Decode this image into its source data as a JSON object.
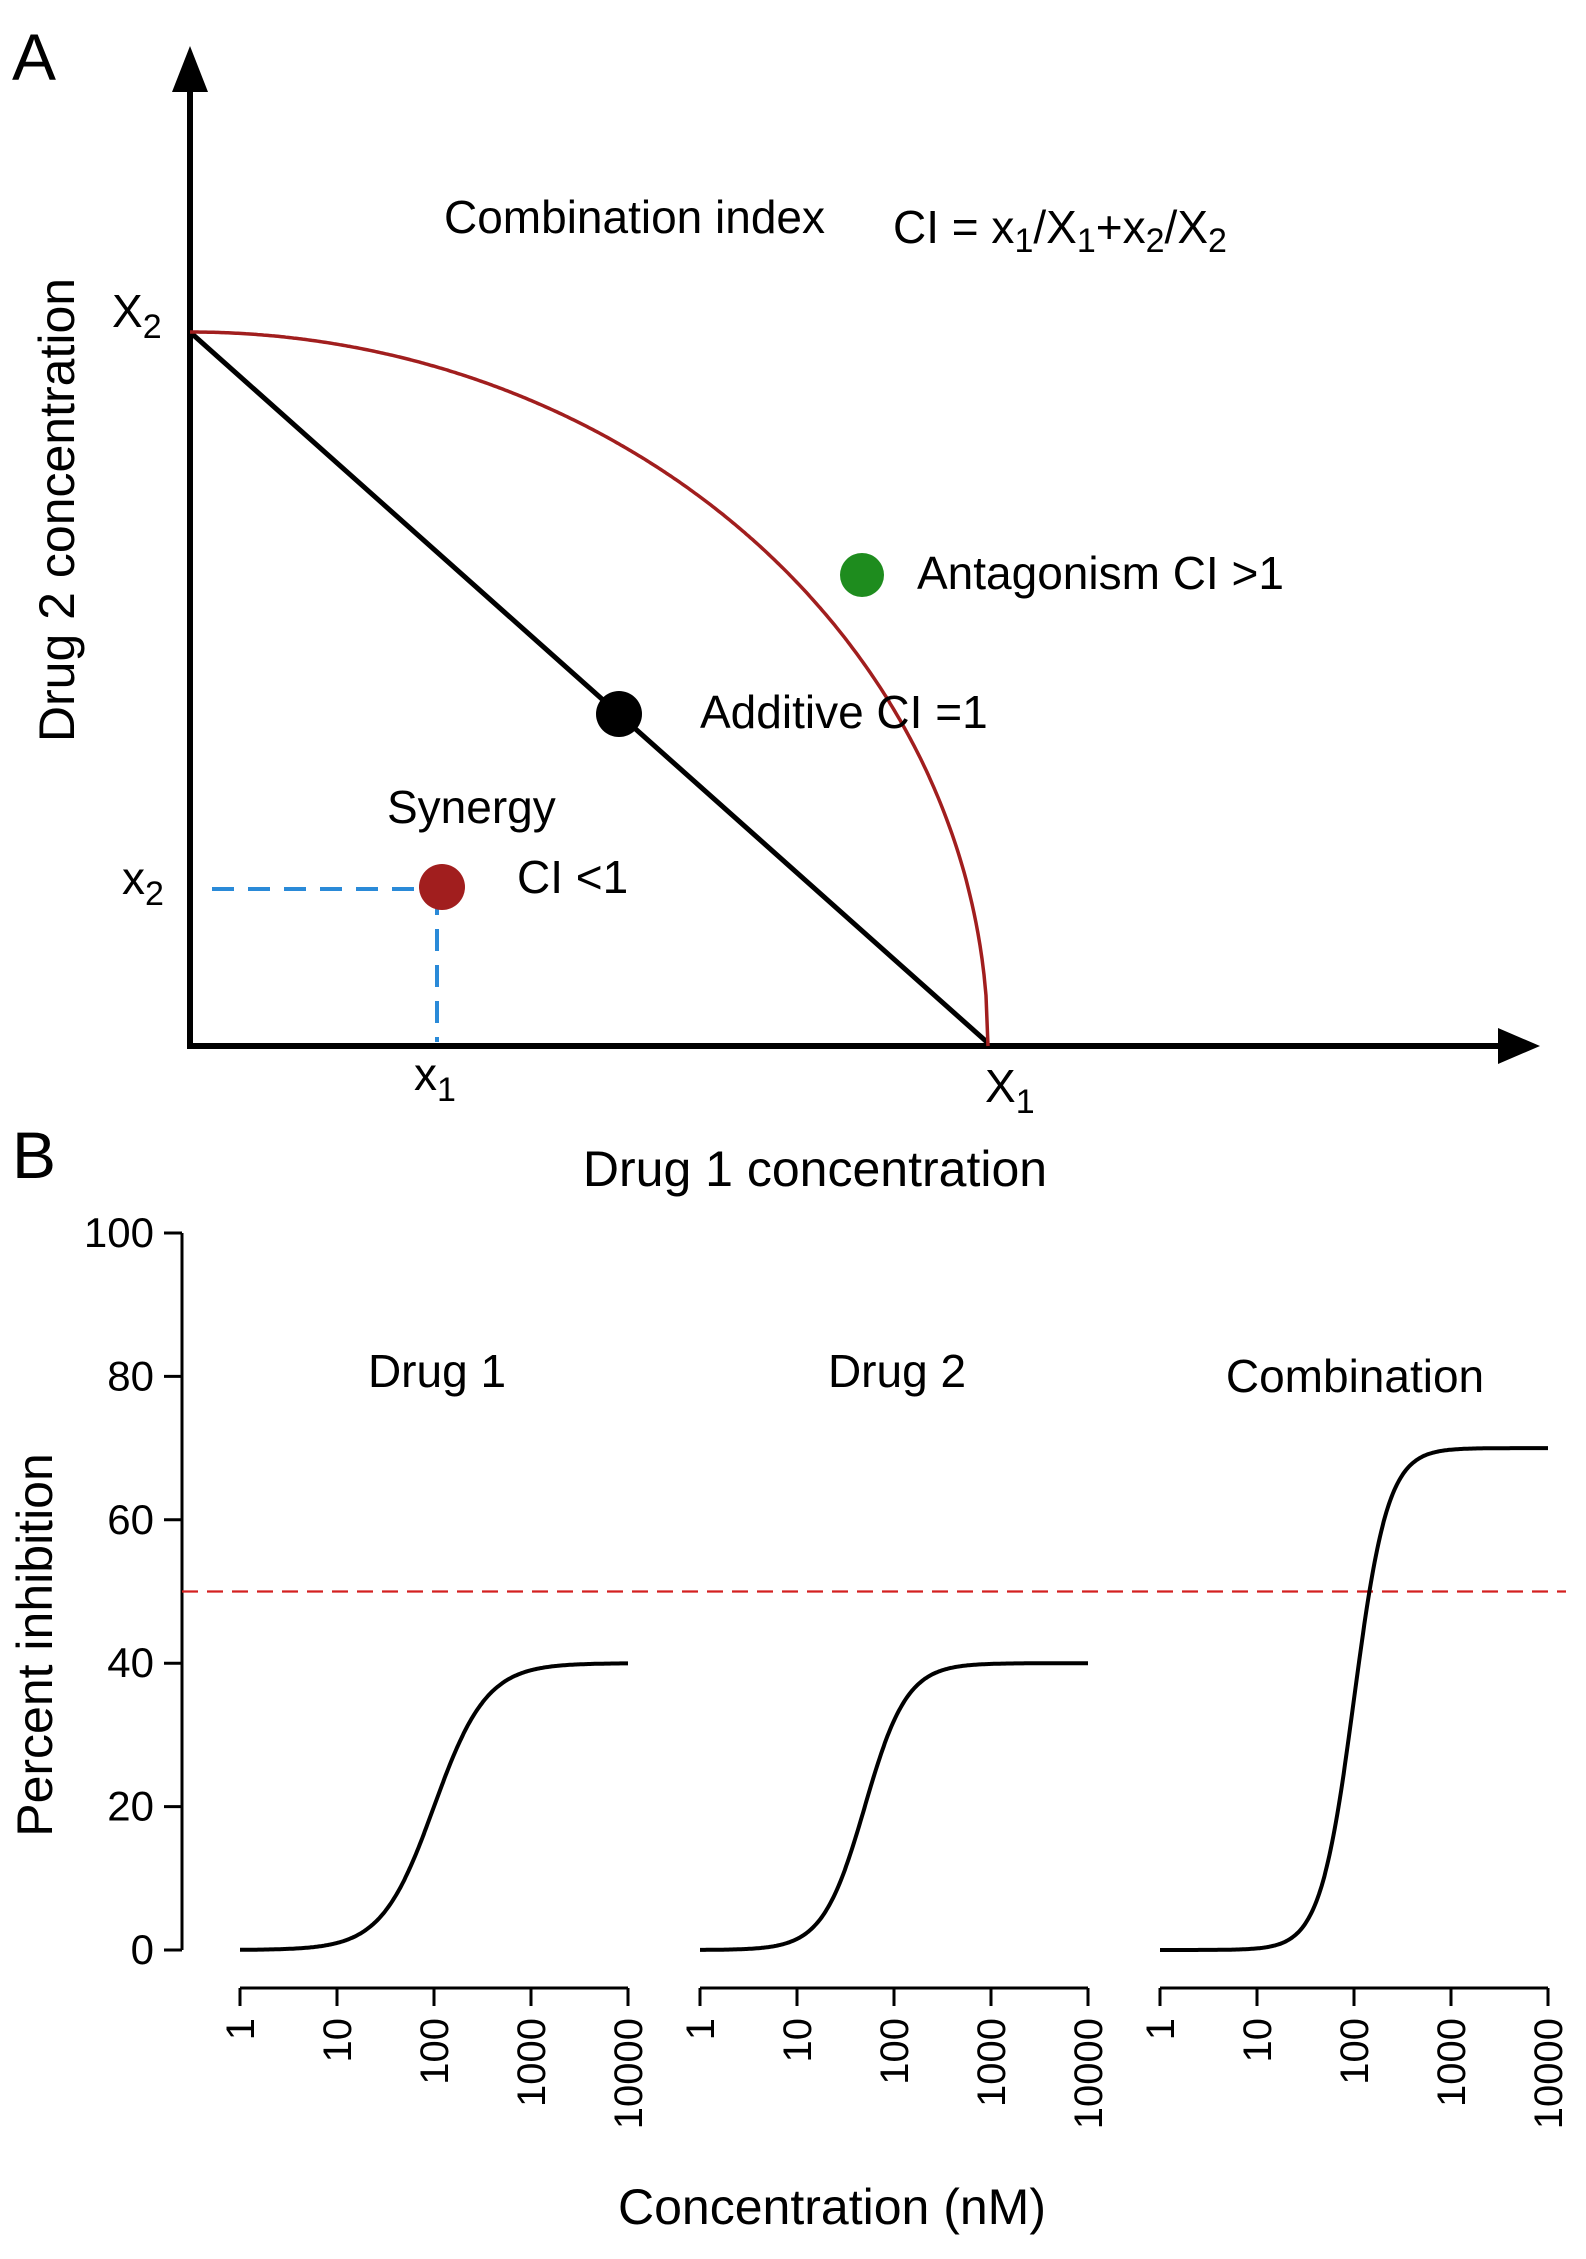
{
  "chart_data": [
    {
      "type": "line",
      "panel_label": "A",
      "xlabel": "Drug 1 concentration",
      "ylabel": "Drug 2 concentration",
      "formula": {
        "title": "Combination index",
        "lhs": "CI = x",
        "s1": "1",
        "m1": "/X",
        "s2": "1",
        "m2": "+x",
        "s3": "2",
        "m3": "/X",
        "s4": "2"
      },
      "marks": {
        "X2": {
          "base": "X",
          "sub": "2"
        },
        "x2": {
          "base": "x",
          "sub": "2"
        },
        "x1": {
          "base": "x",
          "sub": "1"
        },
        "X1": {
          "base": "X",
          "sub": "1"
        }
      },
      "points": {
        "antagonism": {
          "label": "Antagonism  CI >1",
          "color": "#1e8c1e"
        },
        "additive": {
          "label": "Additive CI =1",
          "color": "#000000"
        },
        "synergy": {
          "label": "Synergy",
          "label2": "CI <1",
          "color": "#a11e1e"
        }
      },
      "colors": {
        "isobole": "#000000",
        "synergy_curve": "#a11e1e",
        "guides": "#2a8ad8"
      }
    },
    {
      "type": "line",
      "panel_label": "B",
      "ylabel": "Percent inhibition",
      "xlabel": "Concentration (nM)",
      "ylim": [
        0,
        100
      ],
      "yticks": [
        "0",
        "20",
        "40",
        "60",
        "80",
        "100"
      ],
      "xscale": "log",
      "xticks": [
        "1",
        "10",
        "100",
        "1000",
        "10000"
      ],
      "reference_line": {
        "y": 50,
        "color": "#d42020",
        "style": "dashed"
      },
      "series": [
        {
          "name": "Drug 1",
          "top": 40,
          "ec50": 100,
          "hill": 1.6
        },
        {
          "name": "Drug 2",
          "top": 40,
          "ec50": 50,
          "hill": 2.0
        },
        {
          "name": "Combination",
          "top": 70,
          "ec50": 100,
          "hill": 2.5
        }
      ]
    }
  ]
}
